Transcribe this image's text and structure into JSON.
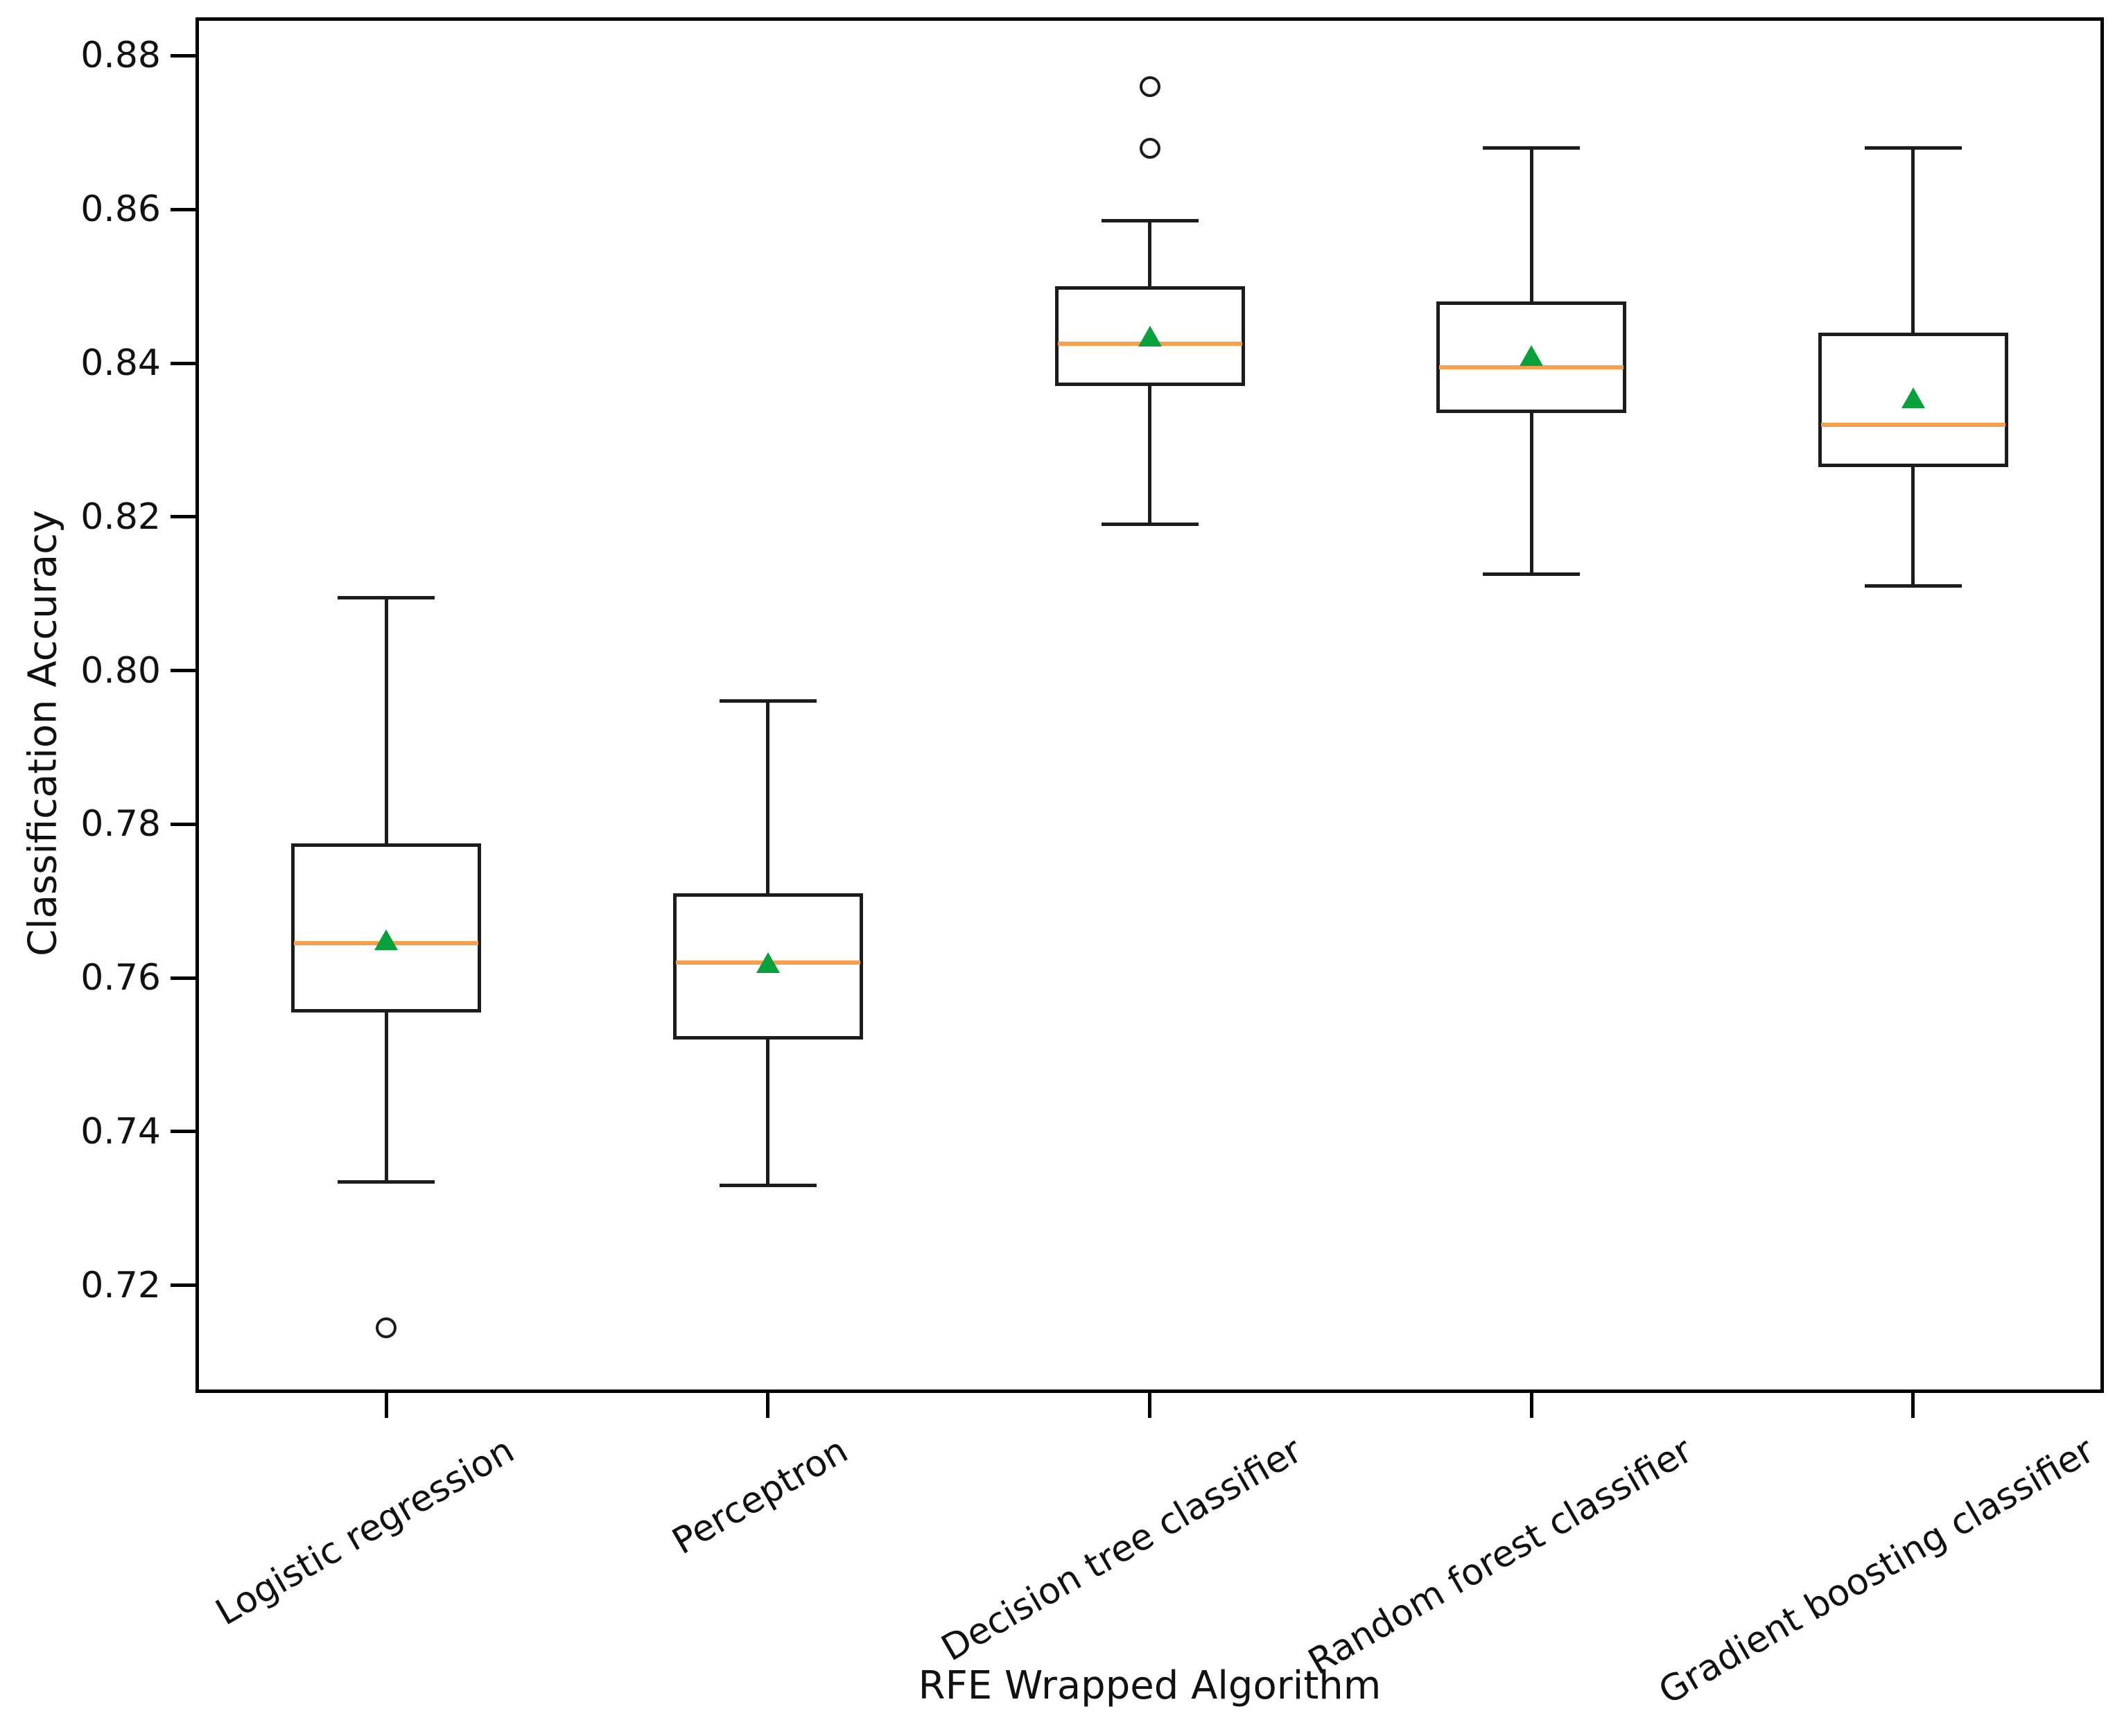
{
  "chart_data": {
    "type": "boxplot",
    "title": "",
    "xlabel": "RFE Wrapped Algorithm",
    "ylabel": "Classification Accuracy",
    "ylim": [
      0.706,
      0.885
    ],
    "yticks": [
      0.72,
      0.74,
      0.76,
      0.78,
      0.8,
      0.82,
      0.84,
      0.86,
      0.88
    ],
    "grid": false,
    "legend": "none",
    "categories": [
      "Logistic regression",
      "Perceptron",
      "Decision tree classifier",
      "Random forest classifier",
      "Gradient boosting classifier"
    ],
    "series": [
      {
        "name": "Logistic regression",
        "whisker_low": 0.7335,
        "q1": 0.7555,
        "median": 0.7645,
        "q3": 0.7775,
        "whisker_high": 0.8095,
        "mean": 0.765,
        "outliers": [
          0.7145
        ]
      },
      {
        "name": "Perceptron",
        "whisker_low": 0.733,
        "q1": 0.752,
        "median": 0.762,
        "q3": 0.771,
        "whisker_high": 0.796,
        "mean": 0.762,
        "outliers": []
      },
      {
        "name": "Decision tree classifier",
        "whisker_low": 0.819,
        "q1": 0.837,
        "median": 0.8425,
        "q3": 0.85,
        "whisker_high": 0.8585,
        "mean": 0.8435,
        "outliers": [
          0.868,
          0.876
        ]
      },
      {
        "name": "Random forest classifier",
        "whisker_low": 0.8125,
        "q1": 0.8335,
        "median": 0.8395,
        "q3": 0.848,
        "whisker_high": 0.868,
        "mean": 0.841,
        "outliers": []
      },
      {
        "name": "Gradient boosting classifier",
        "whisker_low": 0.811,
        "q1": 0.8265,
        "median": 0.832,
        "q3": 0.844,
        "whisker_high": 0.868,
        "mean": 0.8355,
        "outliers": []
      }
    ],
    "colors": {
      "box": "#1c1c1c",
      "median": "#f6a04e",
      "mean_marker": "#0aa03c",
      "outlier": "#1c1c1c",
      "background": "#ffffff"
    }
  }
}
